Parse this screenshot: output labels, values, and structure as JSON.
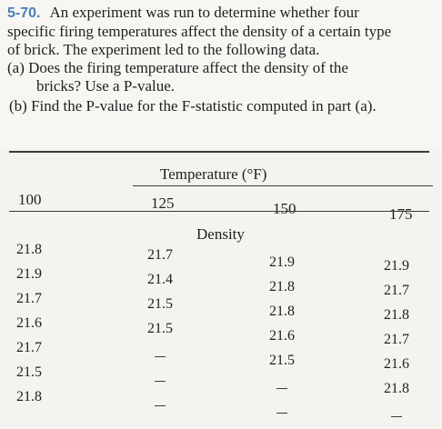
{
  "problem": {
    "number": "5-70.",
    "line1": "An experiment was run to determine whether four",
    "line2": "specific firing temperatures affect the density of a certain type",
    "line3": "of brick. The experiment led to the following data.",
    "part_a_1": "(a) Does the firing temperature affect the density of the",
    "part_a_2": "bricks? Use a P-value.",
    "part_b": "(b) Find the P-value for the F-statistic computed in part (a)."
  },
  "table": {
    "group_header": "Temperature (°F)",
    "columns": [
      "100",
      "125",
      "150",
      "175"
    ],
    "subheader": "Density",
    "rows": [
      [
        "21.8",
        "21.7",
        "21.9",
        "21.9"
      ],
      [
        "21.9",
        "21.4",
        "21.8",
        "21.7"
      ],
      [
        "21.7",
        "21.5",
        "21.8",
        "21.8"
      ],
      [
        "21.6",
        "21.5",
        "21.6",
        "21.7"
      ],
      [
        "21.7",
        "—",
        "21.5",
        "21.6"
      ],
      [
        "21.5",
        "—",
        "—",
        "21.8"
      ],
      [
        "21.8",
        "—",
        "—",
        "—"
      ]
    ]
  }
}
